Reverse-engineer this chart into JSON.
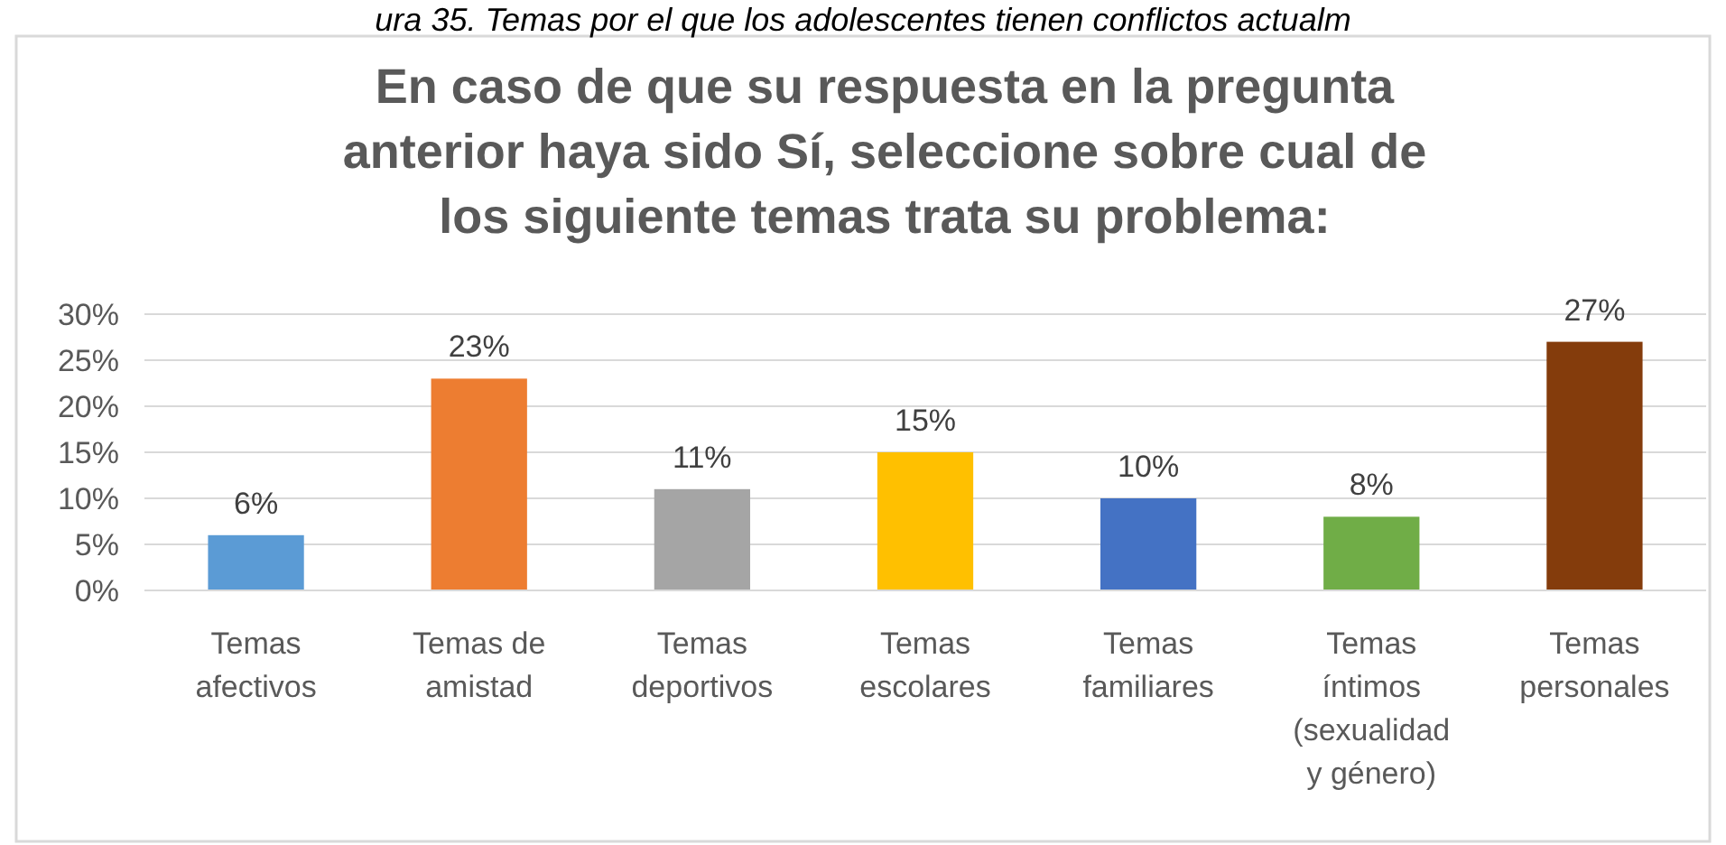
{
  "chart_data": {
    "type": "bar",
    "title": "En caso de que su respuesta en la pregunta anterior haya sido Sí, seleccione sobre cual de los siguiente temas trata su problema:",
    "annotations": [
      "ura 35. Temas por el que los adolescentes tienen conflictos actualm"
    ],
    "categories": [
      "Temas afectivos",
      "Temas de amistad",
      "Temas deportivos",
      "Temas escolares",
      "Temas familiares",
      "Temas íntimos (sexualidad y género)",
      "Temas personales"
    ],
    "values": [
      6,
      23,
      11,
      15,
      10,
      8,
      27
    ],
    "colors": [
      "#5b9bd5",
      "#ed7d31",
      "#a5a5a5",
      "#ffc000",
      "#4472c4",
      "#70ad47",
      "#843c0c"
    ],
    "value_labels": [
      "6%",
      "23%",
      "11%",
      "15%",
      "10%",
      "8%",
      "27%"
    ],
    "ylim": [
      0,
      30
    ],
    "yticks": [
      {
        "value": 0,
        "label": "0%"
      },
      {
        "value": 5,
        "label": "5%"
      },
      {
        "value": 10,
        "label": "10%"
      },
      {
        "value": 15,
        "label": "15%"
      },
      {
        "value": 20,
        "label": "20%"
      },
      {
        "value": 25,
        "label": "25%"
      },
      {
        "value": 30,
        "label": "30%"
      }
    ],
    "grid": "y"
  }
}
